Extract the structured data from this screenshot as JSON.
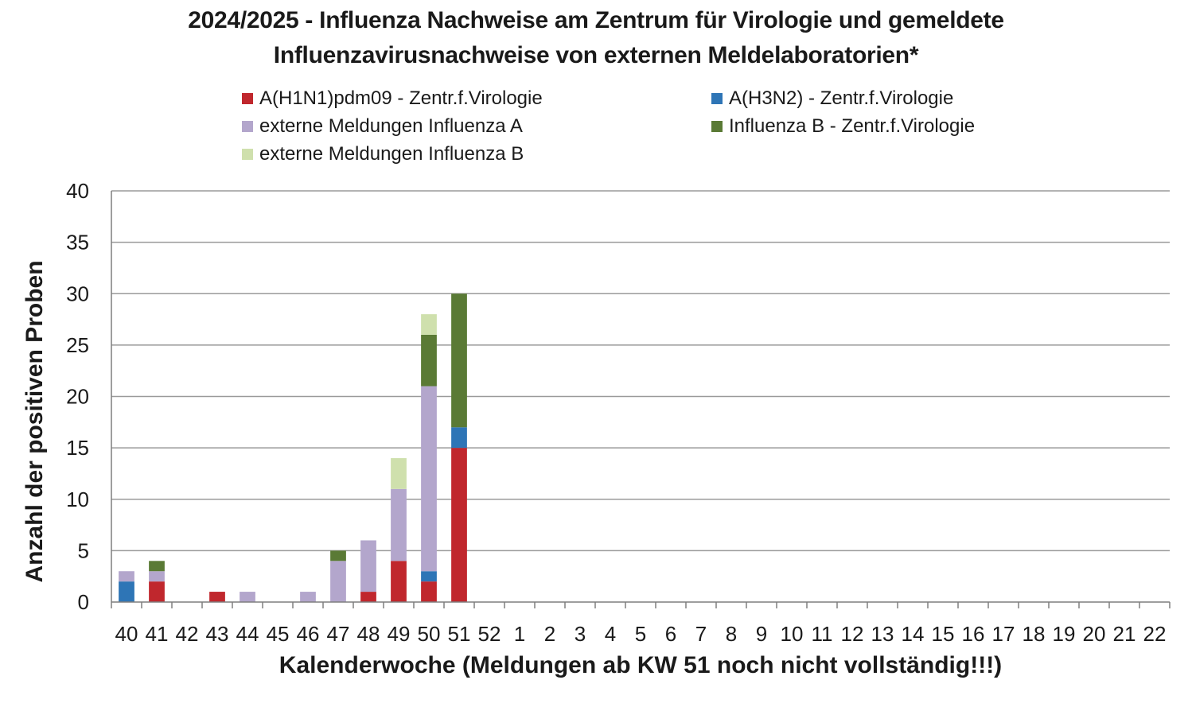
{
  "chart_data": {
    "type": "bar",
    "stacked": true,
    "title_lines": [
      "2024/2025 - Influenza Nachweise am Zentrum für Virologie und gemeldete",
      "Influenzavirusnachweise von externen Meldelaboratorien*"
    ],
    "xlabel": "Kalenderwoche  (Meldungen ab KW 51 noch nicht vollständig!!!)",
    "ylabel": "Anzahl der positiven Proben",
    "ylim": [
      0,
      40
    ],
    "yticks": [
      0,
      5,
      10,
      15,
      20,
      25,
      30,
      35,
      40
    ],
    "grid": true,
    "legend_position": "top",
    "categories": [
      "40",
      "41",
      "42",
      "43",
      "44",
      "45",
      "46",
      "47",
      "48",
      "49",
      "50",
      "51",
      "52",
      "1",
      "2",
      "3",
      "4",
      "5",
      "6",
      "7",
      "8",
      "9",
      "10",
      "11",
      "12",
      "13",
      "14",
      "15",
      "16",
      "17",
      "18",
      "19",
      "20",
      "21",
      "22"
    ],
    "series": [
      {
        "name": "A(H1N1)pdm09 - Zentr.f.Virologie",
        "color": "#c0272d",
        "values": [
          0,
          2,
          0,
          1,
          0,
          0,
          0,
          0,
          1,
          4,
          2,
          15,
          0,
          0,
          0,
          0,
          0,
          0,
          0,
          0,
          0,
          0,
          0,
          0,
          0,
          0,
          0,
          0,
          0,
          0,
          0,
          0,
          0,
          0,
          0
        ]
      },
      {
        "name": "A(H3N2)  - Zentr.f.Virologie",
        "color": "#2e75b6",
        "values": [
          2,
          0,
          0,
          0,
          0,
          0,
          0,
          0,
          0,
          0,
          1,
          2,
          0,
          0,
          0,
          0,
          0,
          0,
          0,
          0,
          0,
          0,
          0,
          0,
          0,
          0,
          0,
          0,
          0,
          0,
          0,
          0,
          0,
          0,
          0
        ]
      },
      {
        "name": "externe Meldungen Influenza A",
        "color": "#b3a6cc",
        "values": [
          1,
          1,
          0,
          0,
          1,
          0,
          1,
          4,
          5,
          7,
          18,
          0,
          0,
          0,
          0,
          0,
          0,
          0,
          0,
          0,
          0,
          0,
          0,
          0,
          0,
          0,
          0,
          0,
          0,
          0,
          0,
          0,
          0,
          0,
          0
        ]
      },
      {
        "name": "Influenza B - Zentr.f.Virologie",
        "color": "#5a7a35",
        "values": [
          0,
          1,
          0,
          0,
          0,
          0,
          0,
          1,
          0,
          0,
          5,
          13,
          0,
          0,
          0,
          0,
          0,
          0,
          0,
          0,
          0,
          0,
          0,
          0,
          0,
          0,
          0,
          0,
          0,
          0,
          0,
          0,
          0,
          0,
          0
        ]
      },
      {
        "name": "externe Meldungen Influenza B",
        "color": "#cfe0ad",
        "values": [
          0,
          0,
          0,
          0,
          0,
          0,
          0,
          0,
          0,
          3,
          2,
          0,
          0,
          0,
          0,
          0,
          0,
          0,
          0,
          0,
          0,
          0,
          0,
          0,
          0,
          0,
          0,
          0,
          0,
          0,
          0,
          0,
          0,
          0,
          0
        ]
      }
    ]
  }
}
